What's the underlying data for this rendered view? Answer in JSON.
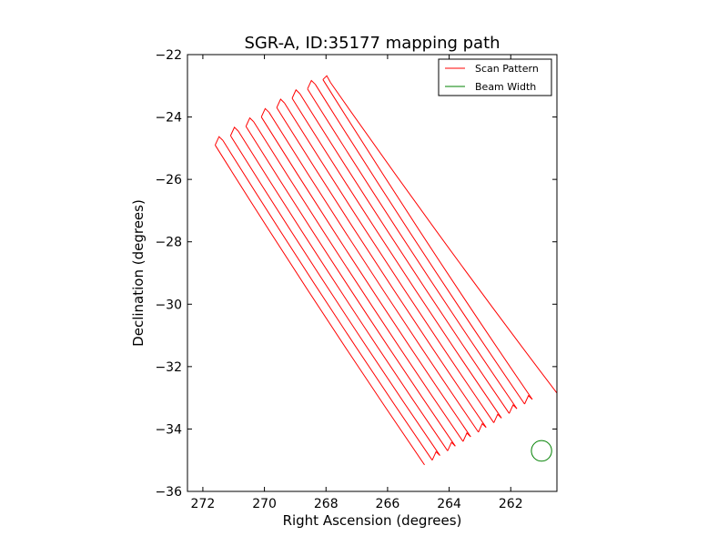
{
  "chart_data": {
    "type": "line",
    "title": "SGR-A, ID:35177 mapping path",
    "xlabel": "Right Ascension (degrees)",
    "ylabel": "Declination (degrees)",
    "xlim": [
      272.5,
      260.5
    ],
    "ylim": [
      -36,
      -22
    ],
    "x_inverted": true,
    "x_ticks": [
      272,
      270,
      268,
      266,
      264,
      262
    ],
    "x_tick_labels": [
      "272",
      "270",
      "268",
      "266",
      "264",
      "262"
    ],
    "y_ticks": [
      -22,
      -24,
      -26,
      -28,
      -30,
      -32,
      -34,
      -36
    ],
    "y_tick_labels": [
      "−22",
      "−24",
      "−26",
      "−28",
      "−30",
      "−32",
      "−34",
      "−36"
    ],
    "grid": false,
    "legend": {
      "placement": "top-right",
      "entries": [
        "Scan Pattern",
        "Beam Width"
      ]
    },
    "series": [
      {
        "name": "Scan Pattern",
        "color": "#ff0000",
        "scan_lines": [
          {
            "start": [
              264.8,
              -35.15
            ],
            "end": [
              271.6,
              -24.9
            ]
          },
          {
            "start": [
              264.55,
              -35.0
            ],
            "end": [
              271.35,
              -24.75
            ]
          },
          {
            "start": [
              264.3,
              -34.85
            ],
            "end": [
              271.1,
              -24.6
            ]
          },
          {
            "start": [
              264.05,
              -34.7
            ],
            "end": [
              270.85,
              -24.45
            ]
          },
          {
            "start": [
              263.8,
              -34.55
            ],
            "end": [
              270.6,
              -24.3
            ]
          },
          {
            "start": [
              263.55,
              -34.4
            ],
            "end": [
              270.35,
              -24.15
            ]
          },
          {
            "start": [
              263.3,
              -34.25
            ],
            "end": [
              270.1,
              -24.0
            ]
          },
          {
            "start": [
              263.05,
              -34.1
            ],
            "end": [
              269.85,
              -23.85
            ]
          },
          {
            "start": [
              262.8,
              -33.95
            ],
            "end": [
              269.6,
              -23.7
            ]
          },
          {
            "start": [
              262.55,
              -33.8
            ],
            "end": [
              269.35,
              -23.55
            ]
          },
          {
            "start": [
              262.3,
              -33.65
            ],
            "end": [
              269.1,
              -23.4
            ]
          },
          {
            "start": [
              262.05,
              -33.5
            ],
            "end": [
              268.85,
              -23.25
            ]
          },
          {
            "start": [
              261.8,
              -33.35
            ],
            "end": [
              268.6,
              -23.1
            ]
          },
          {
            "start": [
              261.55,
              -33.2
            ],
            "end": [
              268.35,
              -22.95
            ]
          },
          {
            "start": [
              261.3,
              -33.05
            ],
            "end": [
              268.1,
              -22.8
            ]
          },
          {
            "start": [
              260.5,
              -32.85
            ],
            "end": [
              267.85,
              -22.9
            ]
          }
        ]
      },
      {
        "name": "Beam Width",
        "color": "#008000",
        "circle": {
          "center": [
            261.0,
            -34.7
          ],
          "radius": 0.33
        }
      }
    ]
  }
}
